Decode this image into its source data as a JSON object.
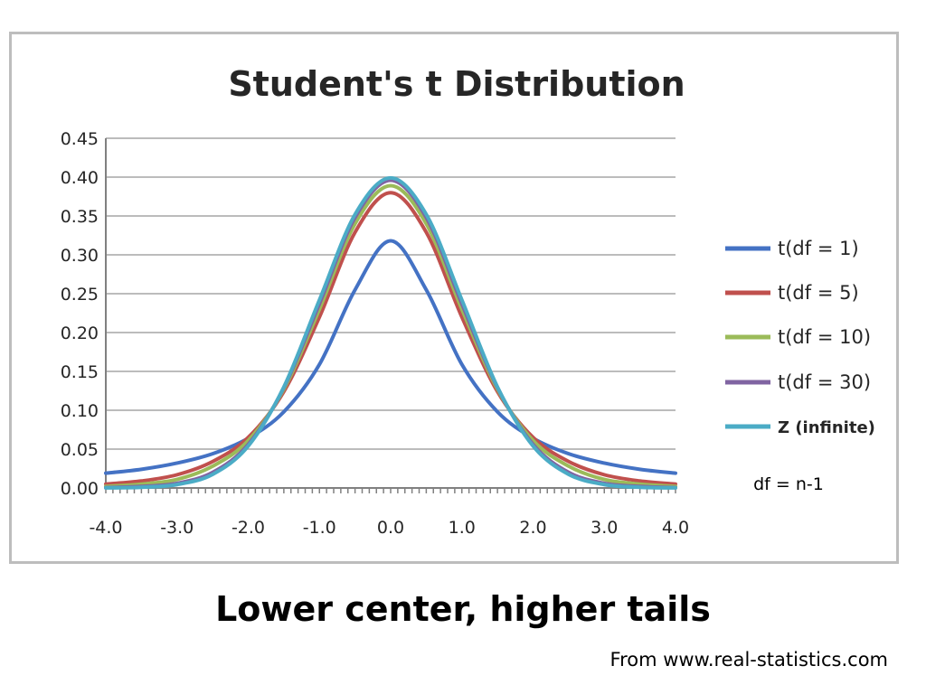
{
  "chart_data": {
    "type": "line",
    "title": "Student's t Distribution",
    "xlabel": "",
    "ylabel": "",
    "xlim": [
      -4.0,
      4.0
    ],
    "ylim": [
      0.0,
      0.45
    ],
    "x_ticks": [
      "-4.0",
      "-3.0",
      "-2.0",
      "-1.0",
      "0.0",
      "1.0",
      "2.0",
      "3.0",
      "4.0"
    ],
    "y_ticks": [
      "0.00",
      "0.05",
      "0.10",
      "0.15",
      "0.20",
      "0.25",
      "0.30",
      "0.35",
      "0.40",
      "0.45"
    ],
    "grid": "horizontal",
    "legend_position": "right",
    "x": [
      -4.0,
      -3.5,
      -3.0,
      -2.5,
      -2.0,
      -1.5,
      -1.0,
      -0.5,
      0.0,
      0.5,
      1.0,
      1.5,
      2.0,
      2.5,
      3.0,
      3.5,
      4.0
    ],
    "series": [
      {
        "name": "t(df = 1)",
        "color": "#4472c4",
        "values": [
          0.019,
          0.024,
          0.032,
          0.044,
          0.064,
          0.098,
          0.159,
          0.255,
          0.318,
          0.255,
          0.159,
          0.098,
          0.064,
          0.044,
          0.032,
          0.024,
          0.019
        ]
      },
      {
        "name": "t(df = 5)",
        "color": "#c0504d",
        "values": [
          0.005,
          0.009,
          0.017,
          0.034,
          0.065,
          0.124,
          0.22,
          0.329,
          0.38,
          0.329,
          0.22,
          0.124,
          0.065,
          0.034,
          0.017,
          0.009,
          0.005
        ]
      },
      {
        "name": "t(df = 10)",
        "color": "#9bbb59",
        "values": [
          0.002,
          0.005,
          0.011,
          0.028,
          0.061,
          0.127,
          0.23,
          0.34,
          0.389,
          0.34,
          0.23,
          0.127,
          0.061,
          0.028,
          0.011,
          0.005,
          0.002
        ]
      },
      {
        "name": "t(df = 30)",
        "color": "#8064a2",
        "values": [
          0.0005,
          0.002,
          0.006,
          0.02,
          0.056,
          0.129,
          0.237,
          0.348,
          0.396,
          0.348,
          0.237,
          0.129,
          0.056,
          0.02,
          0.006,
          0.002,
          0.0005
        ]
      },
      {
        "name": "Z (infinite)",
        "color": "#4bacc6",
        "values": [
          0.0001,
          0.0009,
          0.0044,
          0.0175,
          0.054,
          0.13,
          0.242,
          0.352,
          0.399,
          0.352,
          0.242,
          0.13,
          0.054,
          0.0175,
          0.0044,
          0.0009,
          0.0001
        ]
      }
    ],
    "annotation": "df = n-1"
  },
  "caption": "Lower center, higher tails",
  "source": "From www.real-statistics.com"
}
